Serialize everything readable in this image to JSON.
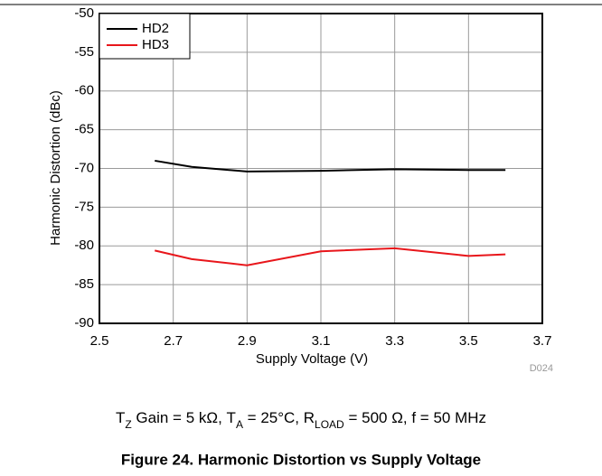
{
  "chart_data": {
    "type": "line",
    "x_label": "Supply Voltage (V)",
    "y_label": "Harmonic Distortion (dBc)",
    "xlim": [
      2.5,
      3.7
    ],
    "xticks": [
      2.5,
      2.7,
      2.9,
      3.1,
      3.3,
      3.5,
      3.7
    ],
    "ylim": [
      -90,
      -50
    ],
    "yticks": [
      -90,
      -85,
      -80,
      -75,
      -70,
      -65,
      -60,
      -55,
      -50
    ],
    "grid": true,
    "legend": "upper left",
    "x": [
      2.65,
      2.75,
      2.9,
      3.1,
      3.3,
      3.5,
      3.6
    ],
    "series": [
      {
        "name": "HD2",
        "color": "#000000",
        "values": [
          -69,
          -69.8,
          -70.4,
          -70.3,
          -70.1,
          -70.2,
          -70.2
        ]
      },
      {
        "name": "HD3",
        "color": "#e8161b",
        "values": [
          -80.6,
          -81.7,
          -82.5,
          -80.7,
          -80.3,
          -81.3,
          -81.1
        ]
      }
    ],
    "note": "D024",
    "caption": [
      "T",
      "Z",
      " Gain = 5 kΩ, T",
      "A",
      " = 25°C, R",
      "LOAD",
      " = 500 Ω, f = 50 MHz"
    ],
    "figure_title": "Figure 24. Harmonic Distortion vs Supply Voltage"
  }
}
